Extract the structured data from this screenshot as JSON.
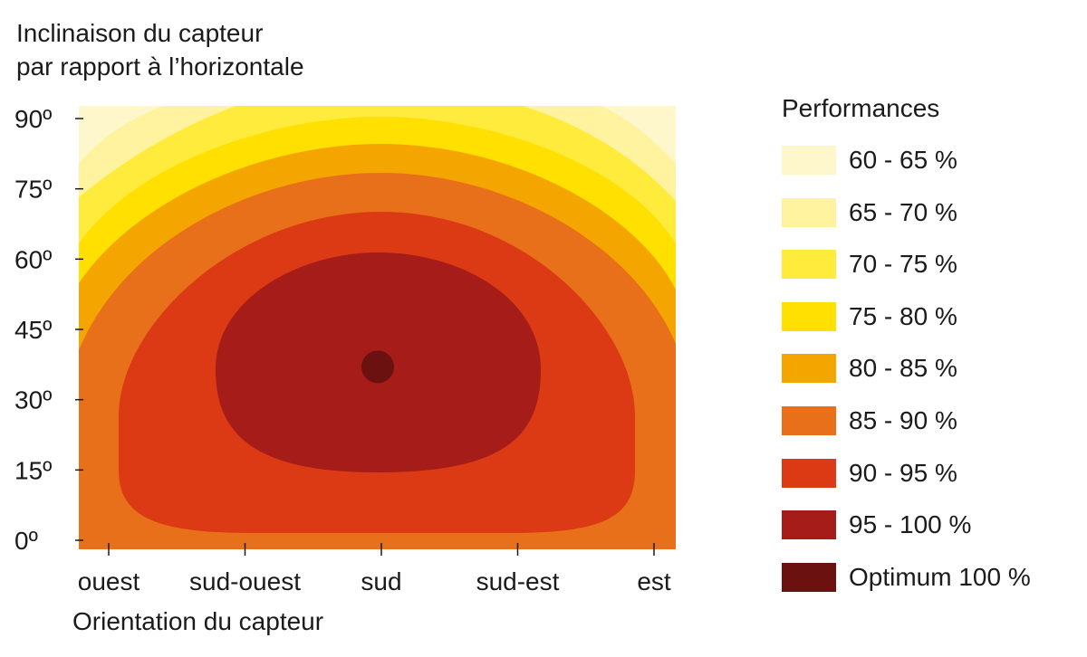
{
  "chart_data": {
    "type": "heatmap",
    "subtype": "filled-contour",
    "ylabel": [
      "Inclinaison du capteur",
      "par rapport à l’horizontale"
    ],
    "xlabel": "Orientation du capteur",
    "x_categories": [
      "ouest",
      "sud-ouest",
      "sud",
      "sud-est",
      "est"
    ],
    "y_ticks": [
      0,
      15,
      30,
      45,
      60,
      75,
      90
    ],
    "y_tick_labels": [
      "0º",
      "15º",
      "30º",
      "45º",
      "60º",
      "75º",
      "90º"
    ],
    "ylim": [
      0,
      90
    ],
    "legend": {
      "title": "Performances",
      "placement": "right",
      "entries": [
        {
          "label": "60 - 65 %",
          "color": "#FFF7CC"
        },
        {
          "label": "65 - 70 %",
          "color": "#FFF3A0"
        },
        {
          "label": "70 - 75 %",
          "color": "#FFEB3B"
        },
        {
          "label": "75 - 80 %",
          "color": "#FFE000"
        },
        {
          "label": "80 - 85 %",
          "color": "#F5A500"
        },
        {
          "label": "85 - 90 %",
          "color": "#E8701A"
        },
        {
          "label": "90 - 95 %",
          "color": "#DC3A14"
        },
        {
          "label": "95 - 100 %",
          "color": "#A51C18"
        },
        {
          "label": "Optimum 100 %",
          "color": "#6B1210"
        }
      ]
    },
    "optimum": {
      "orientation": "sud",
      "inclination": 37,
      "performance": 100
    }
  }
}
